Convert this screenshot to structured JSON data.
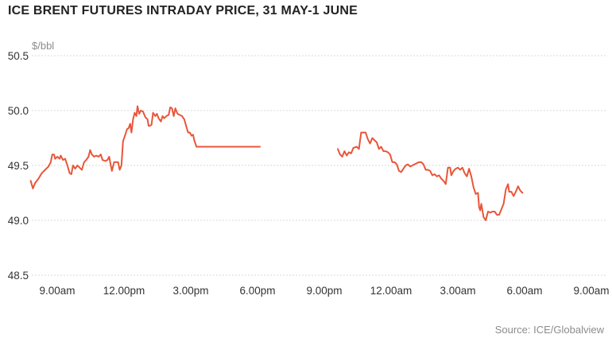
{
  "chart_data": {
    "type": "line",
    "title": "ICE BRENT FUTURES INTRADAY PRICE, 31 MAY-1 JUNE",
    "ylabel": "$/bbl",
    "xlabel": "",
    "ylim": [
      48.5,
      50.5
    ],
    "yticks": [
      "50.5",
      "50.0",
      "49.5",
      "49.0",
      "48.5"
    ],
    "xticks": [
      "9.00am",
      "12.00pm",
      "3.00pm",
      "6.00pm",
      "9.00pm",
      "12.00am",
      "3.00am",
      "6.00am",
      "9.00am"
    ],
    "grid": true,
    "line_color": "#e8563a",
    "source": "Source: ICE/Globalview",
    "series": [
      {
        "segments": [
          [
            [
              -0.05,
              49.36
            ],
            [
              0.05,
              49.29
            ],
            [
              0.15,
              49.34
            ],
            [
              0.3,
              49.38
            ],
            [
              0.45,
              49.43
            ],
            [
              0.6,
              49.46
            ],
            [
              0.75,
              49.49
            ],
            [
              0.85,
              49.53
            ],
            [
              0.92,
              49.6
            ],
            [
              1.0,
              49.6
            ],
            [
              1.05,
              49.56
            ],
            [
              1.15,
              49.58
            ],
            [
              1.25,
              49.56
            ],
            [
              1.3,
              49.59
            ],
            [
              1.4,
              49.55
            ],
            [
              1.5,
              49.56
            ],
            [
              1.6,
              49.5
            ],
            [
              1.7,
              49.43
            ],
            [
              1.78,
              49.42
            ],
            [
              1.85,
              49.5
            ],
            [
              1.95,
              49.47
            ],
            [
              2.05,
              49.5
            ],
            [
              2.15,
              49.48
            ],
            [
              2.25,
              49.46
            ],
            [
              2.35,
              49.53
            ],
            [
              2.45,
              49.55
            ],
            [
              2.55,
              49.58
            ],
            [
              2.62,
              49.64
            ],
            [
              2.7,
              49.6
            ],
            [
              2.8,
              49.58
            ],
            [
              2.9,
              49.59
            ],
            [
              3.0,
              49.58
            ],
            [
              3.1,
              49.6
            ],
            [
              3.18,
              49.55
            ],
            [
              3.3,
              49.54
            ],
            [
              3.4,
              49.55
            ],
            [
              3.48,
              49.58
            ],
            [
              3.55,
              49.5
            ],
            [
              3.6,
              49.45
            ],
            [
              3.7,
              49.53
            ],
            [
              3.8,
              49.53
            ],
            [
              3.88,
              49.53
            ],
            [
              3.95,
              49.46
            ],
            [
              4.03,
              49.5
            ],
            [
              4.1,
              49.72
            ],
            [
              4.2,
              49.78
            ],
            [
              4.28,
              49.83
            ],
            [
              4.35,
              49.84
            ],
            [
              4.42,
              49.88
            ],
            [
              4.48,
              49.8
            ],
            [
              4.55,
              49.92
            ],
            [
              4.62,
              49.98
            ],
            [
              4.7,
              49.95
            ],
            [
              4.75,
              50.04
            ],
            [
              4.82,
              49.97
            ],
            [
              4.9,
              50.0
            ],
            [
              5.0,
              49.99
            ],
            [
              5.1,
              49.94
            ],
            [
              5.2,
              49.92
            ],
            [
              5.25,
              49.86
            ],
            [
              5.3,
              49.86
            ],
            [
              5.38,
              49.87
            ],
            [
              5.45,
              49.98
            ],
            [
              5.55,
              49.95
            ],
            [
              5.62,
              49.97
            ],
            [
              5.7,
              49.93
            ],
            [
              5.8,
              49.9
            ],
            [
              5.88,
              49.95
            ],
            [
              5.95,
              49.93
            ],
            [
              6.05,
              49.95
            ],
            [
              6.15,
              49.96
            ],
            [
              6.22,
              50.03
            ],
            [
              6.3,
              50.02
            ],
            [
              6.38,
              49.95
            ],
            [
              6.45,
              50.02
            ],
            [
              6.55,
              49.97
            ],
            [
              6.65,
              49.96
            ],
            [
              6.75,
              49.95
            ],
            [
              6.85,
              49.92
            ],
            [
              6.95,
              49.85
            ],
            [
              7.02,
              49.8
            ],
            [
              7.1,
              49.8
            ],
            [
              7.18,
              49.77
            ],
            [
              7.25,
              49.78
            ],
            [
              7.3,
              49.73
            ],
            [
              7.35,
              49.7
            ],
            [
              7.4,
              49.67
            ],
            [
              10.25,
              49.67
            ]
          ],
          [
            [
              13.75,
              49.65
            ],
            [
              13.85,
              49.6
            ],
            [
              13.95,
              49.58
            ],
            [
              14.05,
              49.63
            ],
            [
              14.15,
              49.59
            ],
            [
              14.25,
              49.62
            ],
            [
              14.35,
              49.61
            ],
            [
              14.45,
              49.66
            ],
            [
              14.6,
              49.67
            ],
            [
              14.7,
              49.65
            ],
            [
              14.8,
              49.8
            ],
            [
              15.0,
              49.8
            ],
            [
              15.1,
              49.74
            ],
            [
              15.2,
              49.7
            ],
            [
              15.3,
              49.75
            ],
            [
              15.4,
              49.73
            ],
            [
              15.5,
              49.71
            ],
            [
              15.6,
              49.65
            ],
            [
              15.7,
              49.67
            ],
            [
              15.8,
              49.63
            ],
            [
              15.9,
              49.63
            ],
            [
              16.0,
              49.62
            ],
            [
              16.1,
              49.6
            ],
            [
              16.2,
              49.53
            ],
            [
              16.3,
              49.53
            ],
            [
              16.4,
              49.51
            ],
            [
              16.5,
              49.45
            ],
            [
              16.6,
              49.44
            ],
            [
              16.7,
              49.47
            ],
            [
              16.8,
              49.5
            ],
            [
              16.9,
              49.51
            ],
            [
              17.0,
              49.49
            ],
            [
              17.1,
              49.5
            ],
            [
              17.2,
              49.51
            ],
            [
              17.3,
              49.52
            ],
            [
              17.4,
              49.53
            ],
            [
              17.5,
              49.53
            ],
            [
              17.6,
              49.51
            ],
            [
              17.7,
              49.46
            ],
            [
              17.8,
              49.46
            ],
            [
              17.9,
              49.45
            ],
            [
              18.0,
              49.41
            ],
            [
              18.1,
              49.42
            ],
            [
              18.2,
              49.4
            ],
            [
              18.3,
              49.41
            ],
            [
              18.4,
              49.38
            ],
            [
              18.5,
              49.36
            ],
            [
              18.6,
              49.33
            ],
            [
              18.7,
              49.48
            ],
            [
              18.8,
              49.48
            ],
            [
              18.85,
              49.41
            ],
            [
              18.95,
              49.45
            ],
            [
              19.05,
              49.47
            ],
            [
              19.15,
              49.48
            ],
            [
              19.25,
              49.46
            ],
            [
              19.35,
              49.48
            ],
            [
              19.45,
              49.43
            ],
            [
              19.55,
              49.4
            ],
            [
              19.65,
              49.47
            ],
            [
              19.75,
              49.4
            ],
            [
              19.85,
              49.3
            ],
            [
              19.95,
              49.24
            ],
            [
              20.05,
              49.25
            ],
            [
              20.1,
              49.12
            ],
            [
              20.15,
              49.09
            ],
            [
              20.2,
              49.15
            ],
            [
              20.3,
              49.03
            ],
            [
              20.4,
              49.0
            ],
            [
              20.5,
              49.08
            ],
            [
              20.6,
              49.07
            ],
            [
              20.7,
              49.08
            ],
            [
              20.8,
              49.08
            ],
            [
              20.9,
              49.05
            ],
            [
              21.0,
              49.05
            ],
            [
              21.1,
              49.1
            ],
            [
              21.2,
              49.15
            ],
            [
              21.3,
              49.28
            ],
            [
              21.4,
              49.33
            ],
            [
              21.45,
              49.26
            ],
            [
              21.55,
              49.26
            ],
            [
              21.65,
              49.22
            ],
            [
              21.75,
              49.26
            ],
            [
              21.85,
              49.31
            ],
            [
              21.95,
              49.27
            ],
            [
              22.05,
              49.25
            ]
          ]
        ]
      }
    ]
  }
}
